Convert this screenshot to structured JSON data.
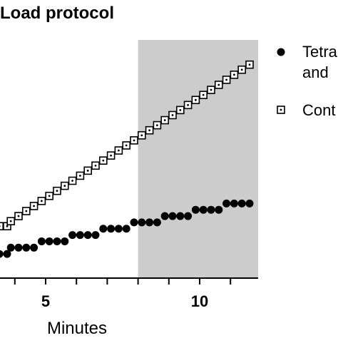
{
  "chart_data": {
    "type": "scatter",
    "title": "Load protocol",
    "xlabel": "Minutes",
    "ylabel": "",
    "xlim": [
      3.5,
      11.9
    ],
    "ylim": [
      0,
      32
    ],
    "x_ticks": [
      4,
      5,
      6,
      7,
      8,
      9,
      10,
      11
    ],
    "x_tick_labels": [
      {
        "x": 5,
        "label": "5"
      },
      {
        "x": 10,
        "label": "10"
      }
    ],
    "shaded_region": {
      "x_start": 8,
      "x_end": 11.9,
      "color": "#cccccc"
    },
    "series": [
      {
        "name": "Tetra and",
        "name_lines": [
          "Tetra",
          "and"
        ],
        "marker": "filled-circle",
        "color": "#000000",
        "points": [
          [
            3.5,
            1.0
          ],
          [
            3.75,
            1.0
          ],
          [
            3.87,
            2.0
          ],
          [
            4.12,
            2.0
          ],
          [
            4.37,
            2.0
          ],
          [
            4.62,
            2.0
          ],
          [
            4.87,
            3.0
          ],
          [
            5.12,
            3.0
          ],
          [
            5.37,
            3.0
          ],
          [
            5.62,
            3.0
          ],
          [
            5.87,
            4.0
          ],
          [
            6.12,
            4.0
          ],
          [
            6.37,
            4.0
          ],
          [
            6.62,
            4.0
          ],
          [
            6.87,
            5.0
          ],
          [
            7.12,
            5.0
          ],
          [
            7.37,
            5.0
          ],
          [
            7.62,
            5.0
          ],
          [
            7.87,
            6.0
          ],
          [
            8.12,
            6.0
          ],
          [
            8.37,
            6.0
          ],
          [
            8.62,
            6.0
          ],
          [
            8.87,
            7.0
          ],
          [
            9.12,
            7.0
          ],
          [
            9.37,
            7.0
          ],
          [
            9.62,
            7.0
          ],
          [
            9.87,
            8.0
          ],
          [
            10.12,
            8.0
          ],
          [
            10.37,
            8.0
          ],
          [
            10.62,
            8.0
          ],
          [
            10.87,
            9.0
          ],
          [
            11.12,
            9.0
          ],
          [
            11.37,
            9.0
          ],
          [
            11.62,
            9.0
          ]
        ]
      },
      {
        "name": "Cont",
        "name_lines": [
          "Cont"
        ],
        "marker": "dotted-square",
        "color": "#000000",
        "points": [
          [
            3.5,
            5.4
          ],
          [
            3.75,
            5.4
          ],
          [
            3.87,
            6.2
          ],
          [
            4.12,
            7.0
          ],
          [
            4.37,
            7.8
          ],
          [
            4.62,
            8.6
          ],
          [
            4.87,
            9.4
          ],
          [
            5.12,
            10.2
          ],
          [
            5.37,
            11.0
          ],
          [
            5.62,
            11.8
          ],
          [
            5.87,
            12.6
          ],
          [
            6.12,
            13.4
          ],
          [
            6.37,
            14.2
          ],
          [
            6.62,
            15.0
          ],
          [
            6.87,
            15.8
          ],
          [
            7.12,
            16.6
          ],
          [
            7.37,
            17.4
          ],
          [
            7.62,
            18.2
          ],
          [
            7.87,
            19.0
          ],
          [
            8.12,
            19.8
          ],
          [
            8.37,
            20.6
          ],
          [
            8.62,
            21.4
          ],
          [
            8.87,
            22.2
          ],
          [
            9.12,
            23.0
          ],
          [
            9.37,
            23.8
          ],
          [
            9.62,
            24.6
          ],
          [
            9.87,
            25.4
          ],
          [
            10.12,
            26.2
          ],
          [
            10.37,
            27.0
          ],
          [
            10.62,
            27.8
          ],
          [
            10.87,
            28.6
          ],
          [
            11.12,
            29.4
          ],
          [
            11.37,
            30.2
          ],
          [
            11.62,
            31.0
          ]
        ]
      }
    ],
    "grid": false,
    "legend_position": "right"
  }
}
